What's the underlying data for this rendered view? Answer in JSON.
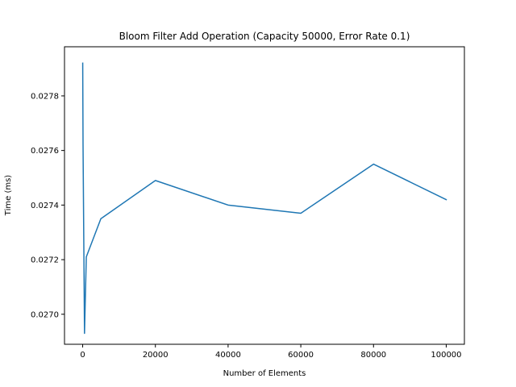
{
  "chart_data": {
    "type": "line",
    "title": "Bloom Filter Add Operation (Capacity 50000, Error Rate 0.1)",
    "xlabel": "Number of Elements",
    "ylabel": "Time (ms)",
    "xlim": [
      -5000,
      105000
    ],
    "ylim": [
      0.02689,
      0.02798
    ],
    "xticks": [
      0,
      20000,
      40000,
      60000,
      80000,
      100000
    ],
    "xtick_labels": [
      "0",
      "20000",
      "40000",
      "60000",
      "80000",
      "100000"
    ],
    "yticks": [
      0.027,
      0.0272,
      0.0274,
      0.0276,
      0.0278
    ],
    "ytick_labels": [
      "0.0270",
      "0.0272",
      "0.0274",
      "0.0276",
      "0.0278"
    ],
    "grid": false,
    "legend": null,
    "series": [
      {
        "color": "#1f77b4",
        "x": [
          10,
          100,
          500,
          1000,
          5000,
          20000,
          40000,
          60000,
          80000,
          100000
        ],
        "y": [
          0.02792,
          0.02762,
          0.02693,
          0.02721,
          0.02735,
          0.02749,
          0.0274,
          0.02737,
          0.02755,
          0.02742
        ]
      }
    ]
  }
}
